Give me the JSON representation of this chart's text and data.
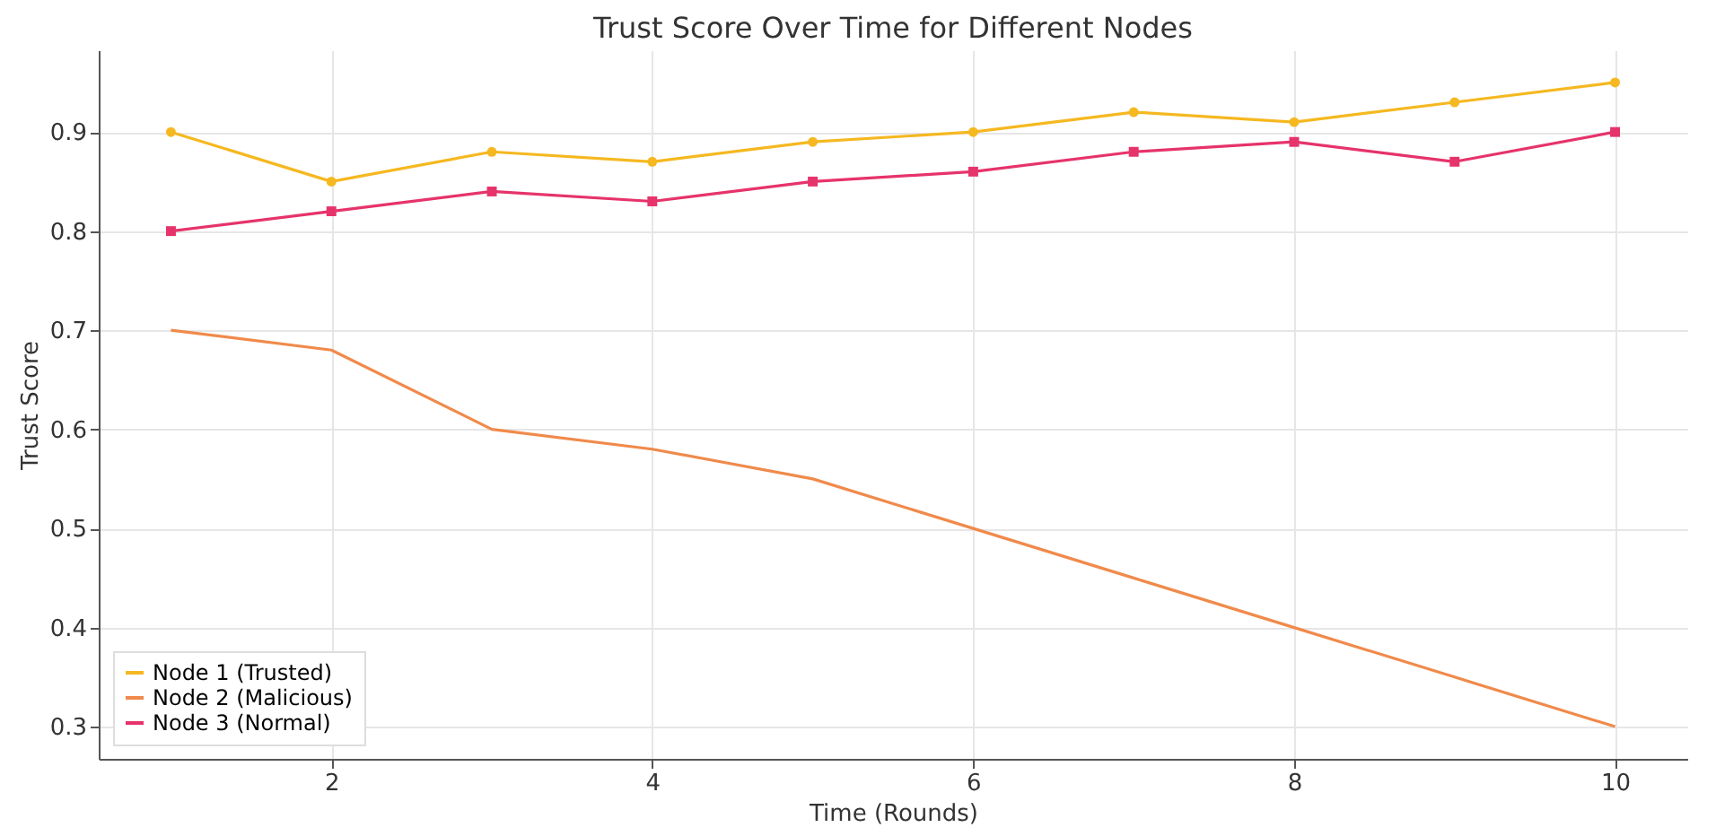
{
  "chart_data": {
    "type": "line",
    "title": "Trust Score Over Time for Different Nodes",
    "xlabel": "Time (Rounds)",
    "ylabel": "Trust Score",
    "x": [
      1,
      2,
      3,
      4,
      5,
      6,
      7,
      8,
      9,
      10
    ],
    "series": [
      {
        "name": "Node 1 (Trusted)",
        "color": "#f5b820",
        "marker": "circle",
        "values": [
          0.9,
          0.85,
          0.88,
          0.87,
          0.89,
          0.9,
          0.92,
          0.91,
          0.93,
          0.95
        ]
      },
      {
        "name": "Node 2 (Malicious)",
        "color": "#f08a4b",
        "marker": "none",
        "values": [
          0.7,
          0.68,
          0.6,
          0.58,
          0.55,
          0.5,
          0.45,
          0.4,
          0.35,
          0.3
        ]
      },
      {
        "name": "Node 3 (Normal)",
        "color": "#e6336b",
        "marker": "square",
        "values": [
          0.8,
          0.82,
          0.84,
          0.83,
          0.85,
          0.86,
          0.88,
          0.89,
          0.87,
          0.9
        ]
      }
    ],
    "xlim": [
      0.55,
      10.45
    ],
    "xticks": [
      2,
      4,
      6,
      8,
      10
    ],
    "ylim": [
      0.2675,
      0.9825
    ],
    "yticks": [
      0.3,
      0.4,
      0.5,
      0.6,
      0.7,
      0.8,
      0.9
    ],
    "grid": true,
    "legend": "bottom left",
    "line_style": "solid"
  }
}
